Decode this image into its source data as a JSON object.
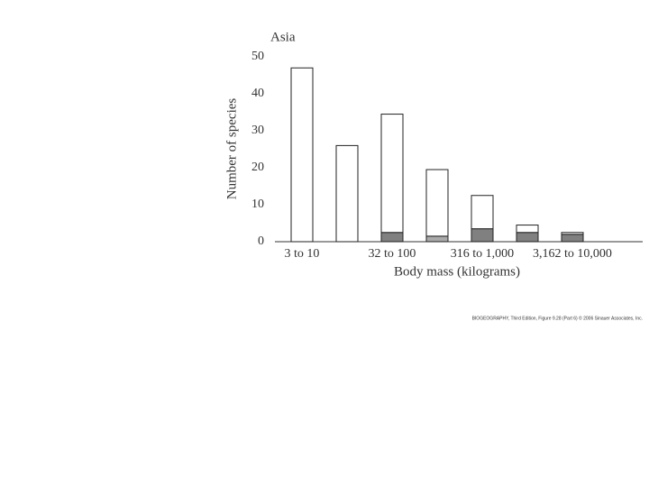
{
  "chart_data": {
    "type": "stacked-bar",
    "title": "Asia",
    "x_label": "Body mass (kilograms)",
    "y_label": "Number of species",
    "categories": [
      "3 to 10",
      null,
      "32 to 100",
      null,
      "316 to 1,000",
      null,
      "3,162 to 10,000"
    ],
    "series": [
      {
        "color": "#808080",
        "values": [
          0,
          0,
          2.5,
          0,
          3.5,
          2.5,
          2
        ]
      },
      {
        "color": "#aaaaaa",
        "values": [
          0,
          0,
          0,
          1.5,
          0,
          0,
          0
        ]
      },
      {
        "color": "#ffffff",
        "values": [
          47,
          26,
          32,
          18,
          9,
          2,
          0.5
        ]
      }
    ],
    "ylim": [
      0,
      50
    ],
    "yticks": [
      0,
      10,
      20,
      30,
      40,
      50
    ],
    "grid": false,
    "credit": "BIOGEOGRAPHY, Third Edition, Figure 9.28 (Part 6) © 2006 Sinauer Associates, Inc."
  }
}
